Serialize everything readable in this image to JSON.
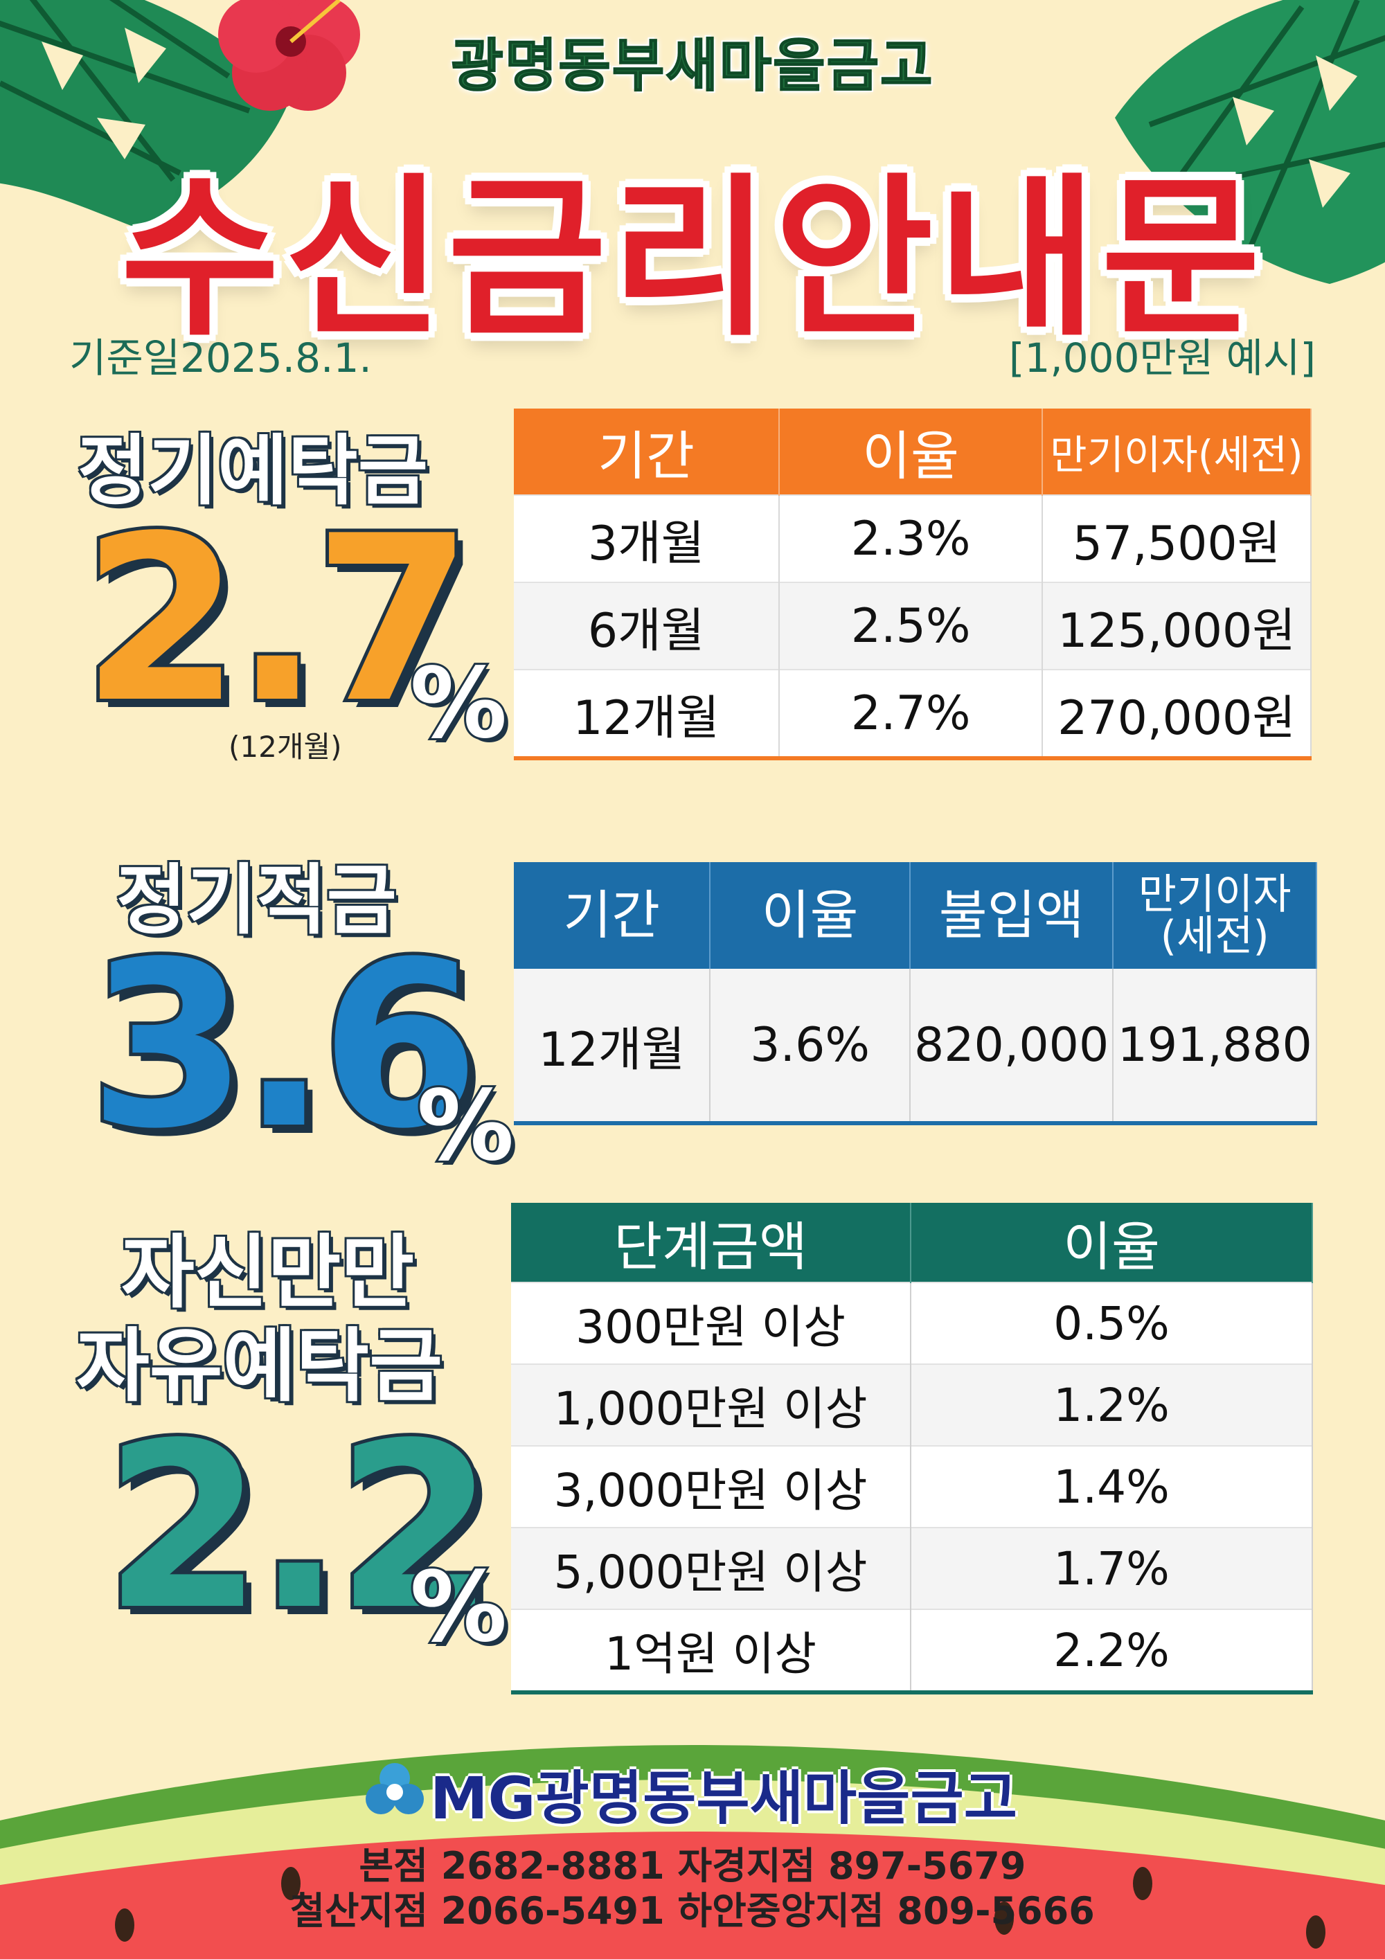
{
  "header": {
    "org_name": "광명동부새마을금고",
    "title": "수신금리안내문",
    "base_date": "기준일2025.8.1.",
    "example_note": "[1,000만원 예시]"
  },
  "time_deposit": {
    "label": "정기예탁금",
    "big_rate": "2.7",
    "pct_sign": "%",
    "term_note": "(12개월)",
    "columns": [
      "기간",
      "이율",
      "만기이자(세전)"
    ],
    "rows": [
      [
        "3개월",
        "2.3%",
        "57,500원"
      ],
      [
        "6개월",
        "2.5%",
        "125,000원"
      ],
      [
        "12개월",
        "2.7%",
        "270,000원"
      ]
    ]
  },
  "installment": {
    "label": "정기적금",
    "big_rate": "3.6",
    "pct_sign": "%",
    "columns": [
      "기간",
      "이율",
      "불입액",
      "만기이자",
      "(세전)"
    ],
    "row": [
      "12개월",
      "3.6%",
      "820,000",
      "191,880"
    ]
  },
  "free_deposit": {
    "label_line1": "자신만만",
    "label_line2": "자유예탁금",
    "big_rate": "2.2",
    "pct_sign": "%",
    "columns": [
      "단계금액",
      "이율"
    ],
    "rows": [
      [
        "300만원 이상",
        "0.5%"
      ],
      [
        "1,000만원 이상",
        "1.2%"
      ],
      [
        "3,000만원 이상",
        "1.4%"
      ],
      [
        "5,000만원 이상",
        "1.7%"
      ],
      [
        "1억원 이상",
        "2.2%"
      ]
    ]
  },
  "footer": {
    "org_name": "MG광명동부새마을금고",
    "line1": "본점  2682-8881   자경지점  897-5679",
    "line2": "철산지점  2066-5491   하안중앙지점  809-5666"
  },
  "colors": {
    "background": "#fcefc6",
    "title_red": "#e0202a",
    "orange": "#f47a24",
    "blue": "#1c6da8",
    "teal": "#136f61"
  }
}
